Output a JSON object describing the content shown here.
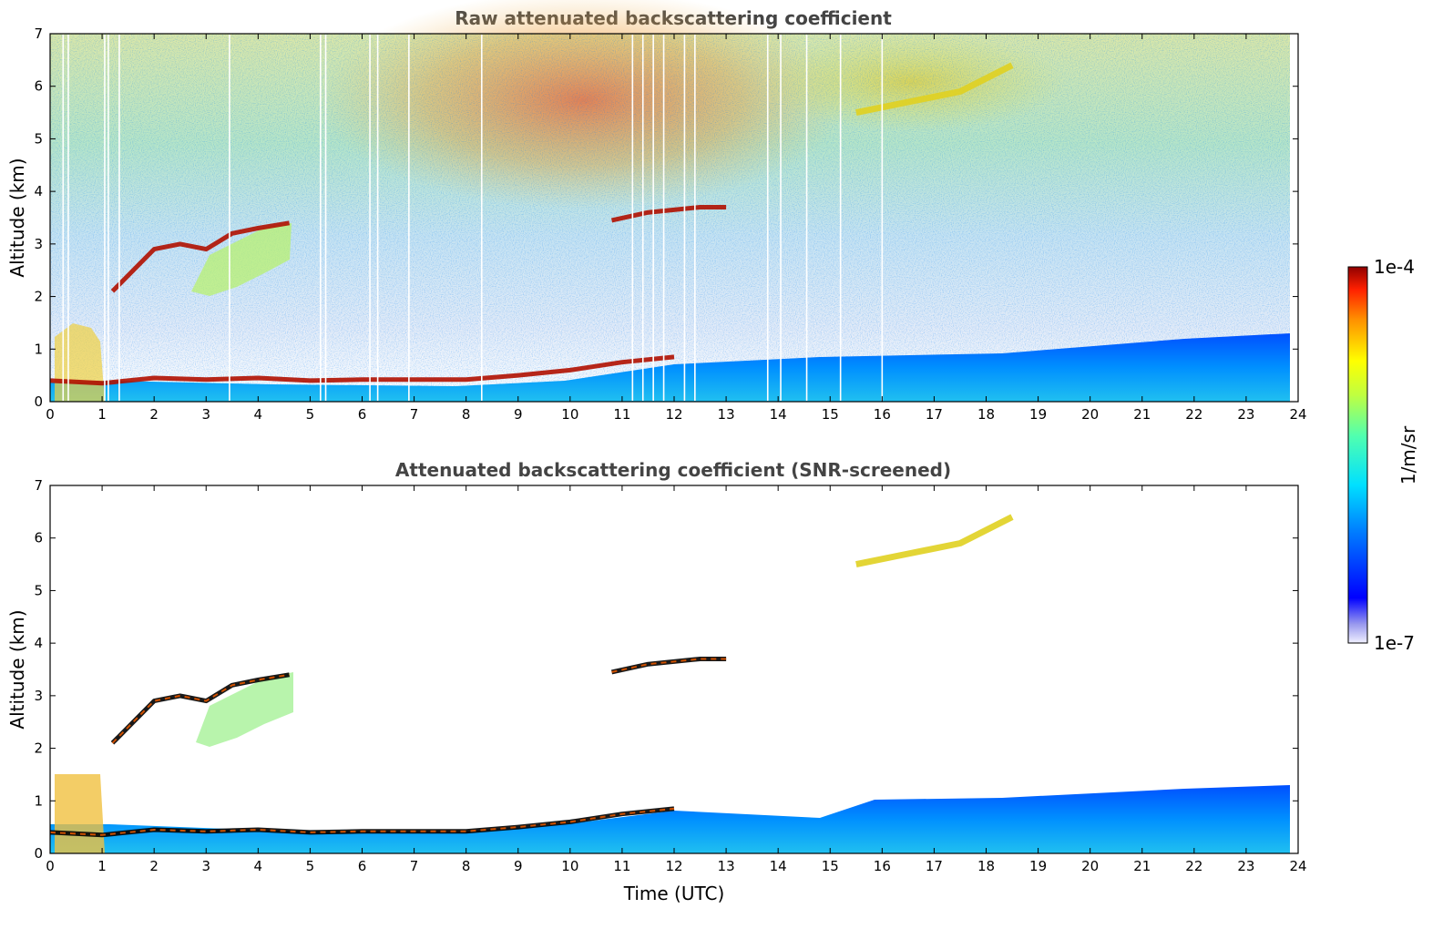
{
  "chart_data": [
    {
      "type": "heatmap",
      "title": "Raw attenuated backscattering coefficient",
      "xlabel": "",
      "ylabel": "Altitude (km)",
      "xlim": [
        0,
        24
      ],
      "ylim": [
        0,
        7
      ],
      "xticks": [
        "0",
        "1",
        "2",
        "3",
        "4",
        "5",
        "6",
        "7",
        "8",
        "9",
        "10",
        "11",
        "12",
        "13",
        "14",
        "15",
        "16",
        "17",
        "18",
        "19",
        "20",
        "21",
        "22",
        "23",
        "24"
      ],
      "yticks": [
        "0",
        "1",
        "2",
        "3",
        "4",
        "5",
        "6",
        "7"
      ],
      "grid": false,
      "layers": [
        {
          "name": "boundary layer top",
          "x": [
            0,
            1,
            2,
            3,
            4,
            5,
            6,
            7,
            8,
            9,
            10,
            11,
            12
          ],
          "y": [
            0.4,
            0.35,
            0.45,
            0.42,
            0.45,
            0.4,
            0.42,
            0.42,
            0.42,
            0.5,
            0.6,
            0.75,
            0.85
          ],
          "level": "high"
        },
        {
          "name": "elevated layer",
          "x": [
            1.2,
            1.6,
            2.0,
            2.5,
            3.0,
            3.5,
            4.0,
            4.6
          ],
          "y": [
            2.1,
            2.5,
            2.9,
            3.0,
            2.9,
            3.2,
            3.3,
            3.4
          ],
          "level": "high"
        },
        {
          "name": "mid-level layer",
          "x": [
            10.8,
            11.5,
            12.5,
            13.0
          ],
          "y": [
            3.45,
            3.6,
            3.7,
            3.7
          ],
          "level": "high"
        },
        {
          "name": "high aerosol",
          "x": [
            15.5,
            16.5,
            17.5,
            18.5
          ],
          "y": [
            5.5,
            5.7,
            5.9,
            6.4
          ],
          "level": "medium"
        }
      ]
    },
    {
      "type": "heatmap",
      "title": "Attenuated backscattering coefficient (SNR-screened)",
      "xlabel": "Time (UTC)",
      "ylabel": "Altitude (km)",
      "xlim": [
        0,
        24
      ],
      "ylim": [
        0,
        7
      ],
      "xticks": [
        "0",
        "1",
        "2",
        "3",
        "4",
        "5",
        "6",
        "7",
        "8",
        "9",
        "10",
        "11",
        "12",
        "13",
        "14",
        "15",
        "16",
        "17",
        "18",
        "19",
        "20",
        "21",
        "22",
        "23",
        "24"
      ],
      "yticks": [
        "0",
        "1",
        "2",
        "3",
        "4",
        "5",
        "6",
        "7"
      ],
      "grid": false,
      "layers": [
        {
          "name": "boundary layer top",
          "x": [
            0,
            1,
            2,
            3,
            4,
            5,
            6,
            7,
            8,
            9,
            10,
            11,
            12
          ],
          "y": [
            0.4,
            0.35,
            0.45,
            0.42,
            0.45,
            0.4,
            0.42,
            0.42,
            0.42,
            0.5,
            0.6,
            0.75,
            0.85
          ],
          "level": "high"
        },
        {
          "name": "elevated layer",
          "x": [
            1.2,
            1.6,
            2.0,
            2.5,
            3.0,
            3.5,
            4.0,
            4.6
          ],
          "y": [
            2.1,
            2.5,
            2.9,
            3.0,
            2.9,
            3.2,
            3.3,
            3.4
          ],
          "level": "high"
        },
        {
          "name": "mid-level layer",
          "x": [
            10.8,
            11.5,
            12.5,
            13.0
          ],
          "y": [
            3.45,
            3.6,
            3.7,
            3.7
          ],
          "level": "high"
        },
        {
          "name": "high aerosol",
          "x": [
            15.5,
            16.5,
            17.5,
            18.5
          ],
          "y": [
            5.5,
            5.7,
            5.9,
            6.4
          ],
          "level": "medium"
        }
      ]
    }
  ],
  "colorbar": {
    "label": "1/m/sr",
    "max_label": "1e-4",
    "min_label": "1e-7",
    "colors": [
      "#e8e8f8",
      "#9999ee",
      "#0000ff",
      "#0080ff",
      "#00d0ff",
      "#40ffc0",
      "#a0ff60",
      "#ffff00",
      "#ffa000",
      "#ff3000",
      "#a00000"
    ]
  }
}
